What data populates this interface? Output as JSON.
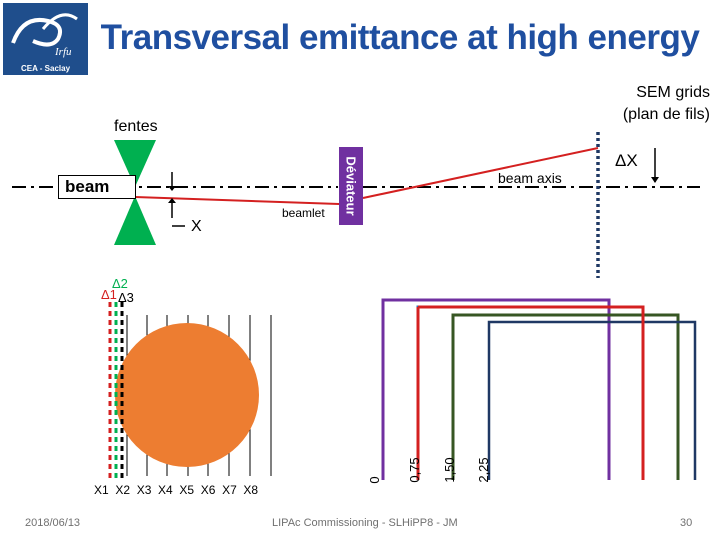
{
  "header": {
    "title": "Transversal emittance at high energy",
    "logo_text": "CEA - Saclay",
    "logo_mark": "Irfu"
  },
  "diagram": {
    "fentes_label": "fentes",
    "beam_label": "beam",
    "x_label": "X",
    "beamlet_label": "beamlet",
    "deviateur_label": "Déviateur",
    "beam_axis_label": "beam axis",
    "delta_x_label": "ΔX",
    "sem_grids_line1": "SEM grids",
    "sem_grids_line2": "(plan de fils)",
    "delta1_label": "Δ1",
    "delta2_label": "Δ2",
    "delta3_label": "Δ3",
    "x_positions_label": "X1  X2  X3  X4  X5  X6  X7  X8",
    "offsets": [
      "0",
      "0,75",
      "1,50",
      "2,25"
    ],
    "colors": {
      "beam_line": "#d42020",
      "slit": "#00b050",
      "deviateur": "#7030a0",
      "sem_grid": "#1f3864",
      "spot": "#ed7d31",
      "offset_0": "#7030a0",
      "offset_075": "#2e75b6",
      "offset_150": "#375623",
      "offset_225": "#385723"
    }
  },
  "footer": {
    "date": "2018/06/13",
    "center": "LIPAc Commissioning - SLHiPP8 - JM",
    "page": "30"
  }
}
